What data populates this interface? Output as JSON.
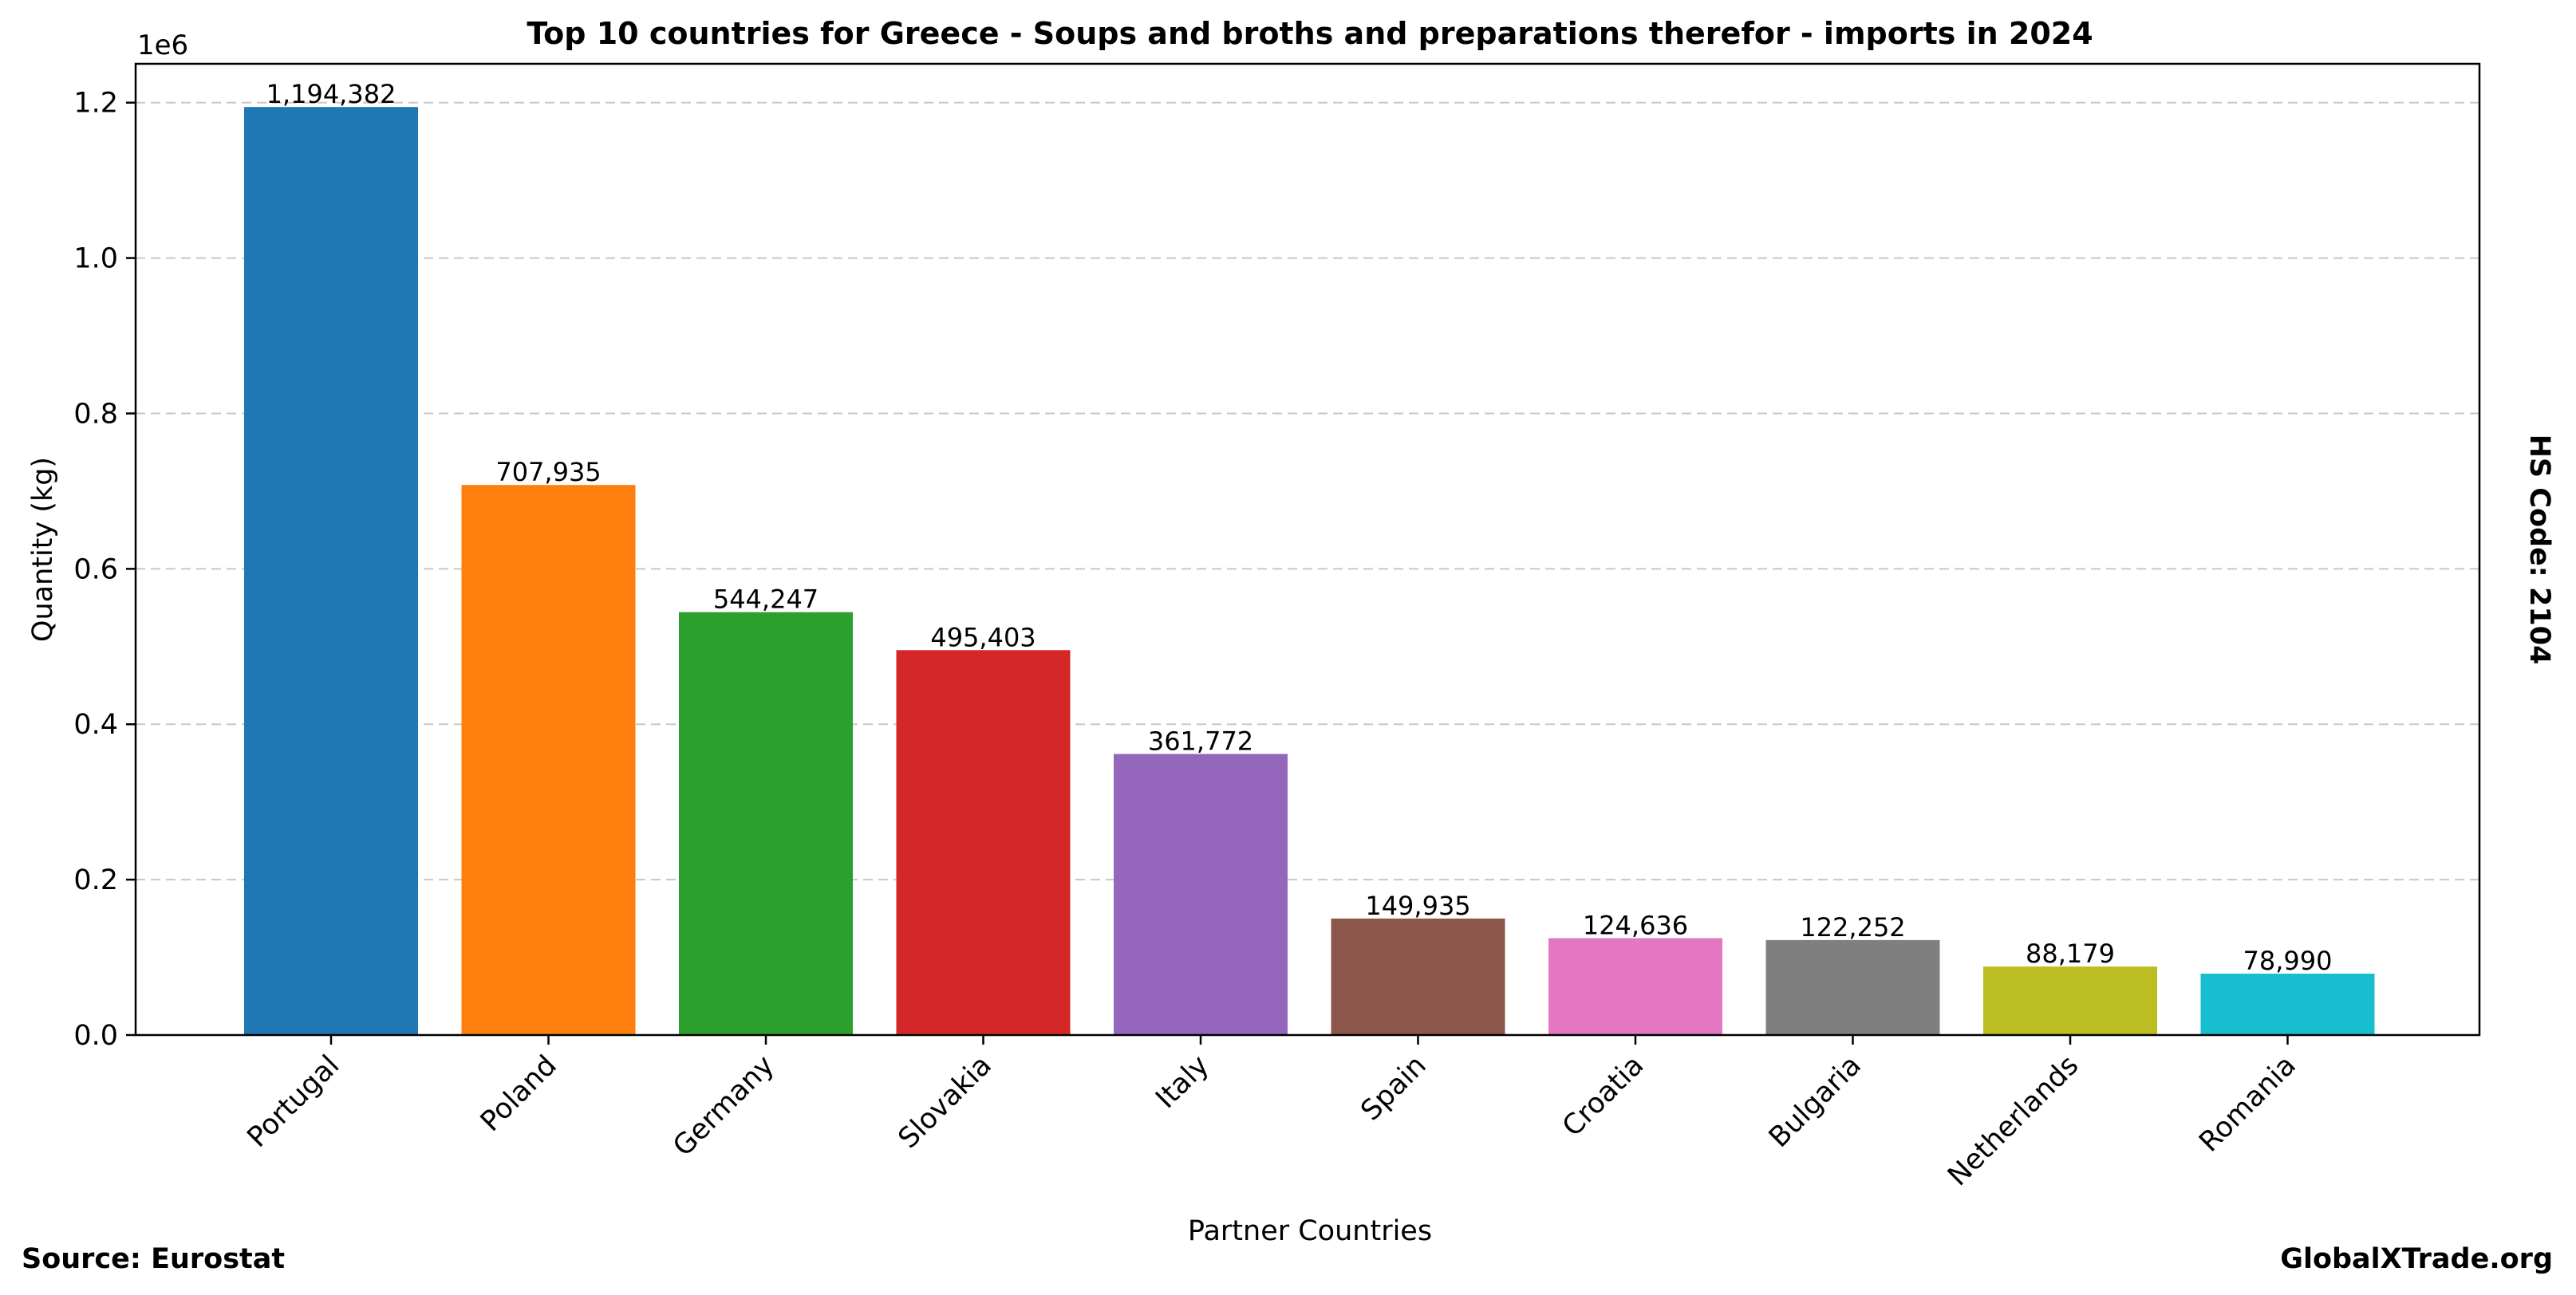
{
  "chart_data": {
    "type": "bar",
    "title": "Top 10 countries for Greece - Soups and broths and preparations therefor - imports in 2024",
    "xlabel": "Partner Countries",
    "ylabel": "Quantity (kg)",
    "y_offset_label": "1e6",
    "right_label": "HS Code: 2104",
    "ylim": [
      0,
      1250000
    ],
    "yticks": [
      0,
      200000,
      400000,
      600000,
      800000,
      1000000,
      1200000
    ],
    "ytick_labels": [
      "0.0",
      "0.2",
      "0.4",
      "0.6",
      "0.8",
      "1.0",
      "1.2"
    ],
    "grid": "horizontal dashed",
    "categories": [
      "Portugal",
      "Poland",
      "Germany",
      "Slovakia",
      "Italy",
      "Spain",
      "Croatia",
      "Bulgaria",
      "Netherlands",
      "Romania"
    ],
    "values": [
      1194382,
      707935,
      544247,
      495403,
      361772,
      149935,
      124636,
      122252,
      88179,
      78990
    ],
    "value_labels": [
      "1,194,382",
      "707,935",
      "544,247",
      "495,403",
      "361,772",
      "149,935",
      "124,636",
      "122,252",
      "88,179",
      "78,990"
    ],
    "colors": [
      "#1f77b4",
      "#ff7f0e",
      "#2ca02c",
      "#d62728",
      "#9467bd",
      "#8c564b",
      "#e377c2",
      "#7f7f7f",
      "#bcbd22",
      "#17becf"
    ]
  },
  "footer": {
    "source": "Source: Eurostat",
    "brand": "GlobalXTrade.org"
  }
}
